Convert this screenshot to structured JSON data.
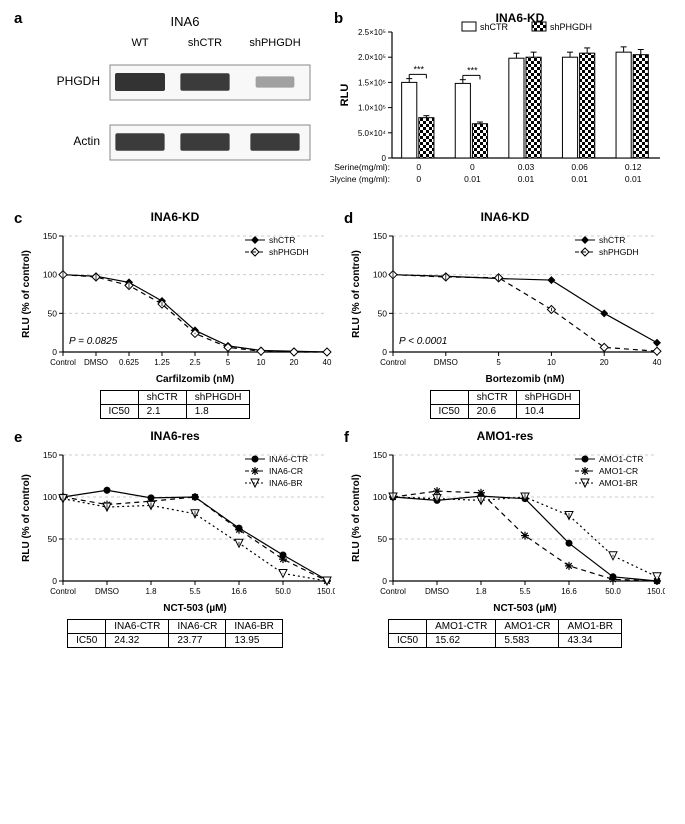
{
  "panel_a": {
    "letter": "a",
    "title": "INA6",
    "lanes": [
      "WT",
      "shCTR",
      "shPHGDH"
    ],
    "row_labels": [
      "PHGDH",
      "Actin"
    ],
    "band_intensity": {
      "PHGDH": [
        1.0,
        0.95,
        0.25
      ],
      "Actin": [
        0.95,
        0.95,
        0.95
      ]
    },
    "band_height": 18,
    "band_color": "#333333",
    "lane_bg": "#f8f8f8",
    "lane_border": "#888888"
  },
  "panel_b": {
    "letter": "b",
    "title": "INA6-KD",
    "type": "bar",
    "legend": [
      "shCTR",
      "shPHGDH"
    ],
    "legend_pattern": [
      "open",
      "checker"
    ],
    "bar_colors": [
      "#ffffff",
      "#ffffff"
    ],
    "bar_border": "#000000",
    "groups": [
      {
        "serine": "0",
        "glycine": "0",
        "values": [
          150000,
          80000
        ],
        "sig": "***"
      },
      {
        "serine": "0",
        "glycine": "0.01",
        "values": [
          148000,
          68000
        ],
        "sig": "***"
      },
      {
        "serine": "0.03",
        "glycine": "0.01",
        "values": [
          198000,
          200000
        ],
        "sig": ""
      },
      {
        "serine": "0.06",
        "glycine": "0.01",
        "values": [
          200000,
          208000
        ],
        "sig": ""
      },
      {
        "serine": "0.12",
        "glycine": "0.01",
        "values": [
          210000,
          205000
        ],
        "sig": ""
      }
    ],
    "ylabel": "RLU",
    "ylim": [
      0,
      250000
    ],
    "yticks": [
      0,
      50000,
      100000,
      150000,
      200000,
      250000
    ],
    "ytick_labels": [
      "0",
      "5.0×10⁴",
      "1.0×10⁵",
      "1.5×10⁵",
      "2.0×10⁵",
      "2.5×10⁵"
    ],
    "x_sub_labels": [
      "Serine(mg/ml):",
      "Glycine (mg/ml):"
    ]
  },
  "panel_c": {
    "letter": "c",
    "title": "INA6-KD",
    "type": "line",
    "xlabel": "Carfilzomib (nM)",
    "ylabel": "RLU (% of control)",
    "ylim": [
      0,
      150
    ],
    "yticks": [
      0,
      50,
      100,
      150
    ],
    "xticks": [
      "Control",
      "DMSO",
      "0.625",
      "1.25",
      "2.5",
      "5",
      "10",
      "20",
      "40"
    ],
    "series": [
      {
        "name": "shCTR",
        "marker": "filled-diamond",
        "dash": "solid",
        "y": [
          100,
          98,
          90,
          66,
          28,
          8,
          2,
          1,
          0
        ]
      },
      {
        "name": "shPHGDH",
        "marker": "open-diamond",
        "dash": "dashed",
        "y": [
          100,
          97,
          86,
          62,
          24,
          6,
          1,
          0,
          0
        ]
      }
    ],
    "p_text": "P = 0.0825",
    "ic50": {
      "headers": [
        "shCTR",
        "shPHGDH"
      ],
      "values": [
        "2.1",
        "1.8"
      ]
    }
  },
  "panel_d": {
    "letter": "d",
    "title": "INA6-KD",
    "type": "line",
    "xlabel": "Bortezomib (nM)",
    "ylabel": "RLU (% of control)",
    "ylim": [
      0,
      150
    ],
    "yticks": [
      0,
      50,
      100,
      150
    ],
    "xticks": [
      "Control",
      "DMSO",
      "5",
      "10",
      "20",
      "40"
    ],
    "series": [
      {
        "name": "shCTR",
        "marker": "filled-diamond",
        "dash": "solid",
        "y": [
          100,
          98,
          95,
          93,
          50,
          12
        ]
      },
      {
        "name": "shPHGDH",
        "marker": "open-diamond",
        "dash": "dashed",
        "y": [
          100,
          97,
          96,
          55,
          6,
          1
        ]
      }
    ],
    "p_text": "P < 0.0001",
    "ic50": {
      "headers": [
        "shCTR",
        "shPHGDH"
      ],
      "values": [
        "20.6",
        "10.4"
      ]
    }
  },
  "panel_e": {
    "letter": "e",
    "title": "INA6-res",
    "type": "line",
    "xlabel": "NCT-503 (µM)",
    "ylabel": "RLU (% of control)",
    "ylim": [
      0,
      150
    ],
    "yticks": [
      0,
      50,
      100,
      150
    ],
    "xticks": [
      "Control",
      "DMSO",
      "1.8",
      "5.5",
      "16.6",
      "50.0",
      "150.0"
    ],
    "series": [
      {
        "name": "INA6-CTR",
        "marker": "filled-circle",
        "dash": "solid",
        "y": [
          100,
          108,
          99,
          100,
          63,
          31,
          1
        ]
      },
      {
        "name": "INA6-CR",
        "marker": "asterisk",
        "dash": "dashed",
        "y": [
          100,
          91,
          95,
          100,
          61,
          26,
          0
        ]
      },
      {
        "name": "INA6-BR",
        "marker": "open-tri-down",
        "dash": "dotted",
        "y": [
          98,
          88,
          90,
          80,
          45,
          9,
          0
        ]
      }
    ],
    "ic50": {
      "headers": [
        "INA6-CTR",
        "INA6-CR",
        "INA6-BR"
      ],
      "values": [
        "24.32",
        "23.77",
        "13.95"
      ]
    }
  },
  "panel_f": {
    "letter": "f",
    "title": "AMO1-res",
    "type": "line",
    "xlabel": "NCT-503 (µM)",
    "ylabel": "RLU (% of control)",
    "ylim": [
      0,
      150
    ],
    "yticks": [
      0,
      50,
      100,
      150
    ],
    "xticks": [
      "Control",
      "DMSO",
      "1.8",
      "5.5",
      "16.6",
      "50.0",
      "150.0"
    ],
    "series": [
      {
        "name": "AMO1-CTR",
        "marker": "filled-circle",
        "dash": "solid",
        "y": [
          100,
          96,
          101,
          98,
          45,
          5,
          0
        ]
      },
      {
        "name": "AMO1-CR",
        "marker": "asterisk",
        "dash": "dashed",
        "y": [
          100,
          107,
          105,
          54,
          18,
          2,
          0
        ]
      },
      {
        "name": "AMO1-BR",
        "marker": "open-tri-down",
        "dash": "dotted",
        "y": [
          100,
          98,
          96,
          100,
          78,
          30,
          5
        ]
      }
    ],
    "ic50": {
      "headers": [
        "AMO1-CTR",
        "AMO1-CR",
        "AMO1-BR"
      ],
      "values": [
        "15.62",
        "5.583",
        "43.34"
      ]
    }
  },
  "colors": {
    "axis": "#000000",
    "grid": "#cccccc",
    "text": "#000000"
  },
  "ic50_label": "IC50"
}
